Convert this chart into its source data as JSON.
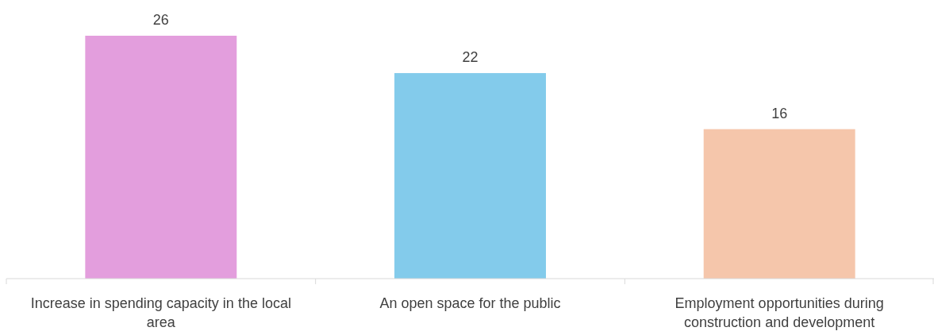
{
  "chart_data": {
    "type": "bar",
    "categories": [
      "Increase in spending capacity in the local area",
      "An open space for the public",
      "Employment opportunities during construction and development"
    ],
    "values": [
      26,
      22,
      16
    ],
    "colors": [
      "#e39edd",
      "#83cbeb",
      "#f5c6ab"
    ],
    "data_labels": true
  }
}
